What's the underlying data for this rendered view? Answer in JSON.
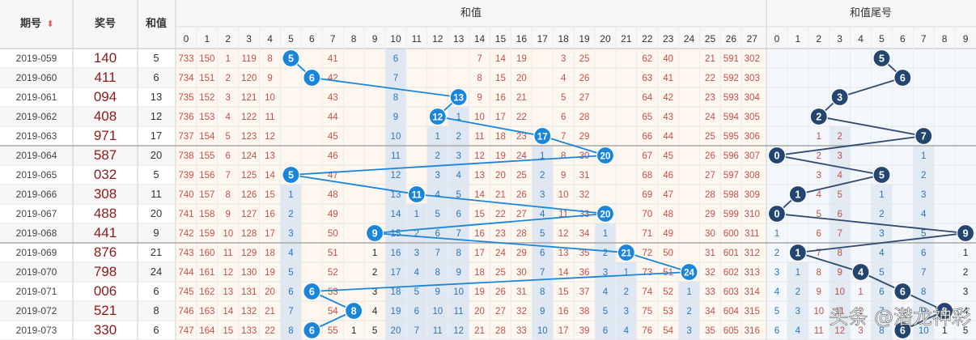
{
  "header": {
    "period": "期号",
    "prize": "奖号",
    "sum": "和值",
    "sum_group": "和值",
    "tail_group": "和值尾号"
  },
  "watermark": "头条 @潜龙神彩",
  "colors": {
    "sum_ball": "#1a86d9",
    "tail_ball": "#23456e",
    "prize_text": "#8b1a1a",
    "miss_red": "#c0504d",
    "miss_blue": "#2e74b5",
    "miss_black": "#222222",
    "sum_line": "#1a86d9",
    "tail_line": "#2d4a6e"
  },
  "chart_data": {
    "type": "table",
    "sum_columns": [
      "0",
      "1",
      "2",
      "3",
      "4",
      "5",
      "6",
      "7",
      "8",
      "9",
      "10",
      "11",
      "12",
      "13",
      "14",
      "15",
      "16",
      "17",
      "18",
      "19",
      "20",
      "21",
      "22",
      "23",
      "24",
      "25",
      "26",
      "27"
    ],
    "tail_columns": [
      "0",
      "1",
      "2",
      "3",
      "4",
      "5",
      "6",
      "7",
      "8",
      "9"
    ],
    "rows": [
      {
        "period": "2019-059",
        "prize": "140",
        "sum": "5",
        "sum_cells": [
          "733",
          "150",
          "1",
          "119",
          "8",
          "",
          "",
          "41",
          "",
          "",
          "6",
          "",
          "",
          "",
          "7",
          "14",
          "19",
          "",
          "3",
          "25",
          "",
          "",
          "62",
          "40",
          "",
          "21",
          "591",
          "302"
        ],
        "tail_cells": [
          "",
          "",
          "",
          "",
          "",
          "",
          "",
          "",
          "",
          ""
        ]
      },
      {
        "period": "2019-060",
        "prize": "411",
        "sum": "6",
        "sum_cells": [
          "734",
          "151",
          "2",
          "120",
          "9",
          "",
          "",
          "42",
          "",
          "",
          "7",
          "",
          "",
          "",
          "8",
          "15",
          "20",
          "",
          "4",
          "26",
          "",
          "",
          "63",
          "41",
          "",
          "22",
          "592",
          "303"
        ],
        "tail_cells": [
          "",
          "",
          "",
          "",
          "",
          "",
          "",
          "",
          "",
          ""
        ]
      },
      {
        "period": "2019-061",
        "prize": "094",
        "sum": "13",
        "sum_cells": [
          "735",
          "152",
          "3",
          "121",
          "10",
          "",
          "",
          "43",
          "",
          "",
          "8",
          "",
          "",
          "",
          "9",
          "16",
          "21",
          "",
          "5",
          "27",
          "",
          "",
          "64",
          "42",
          "",
          "23",
          "593",
          "304"
        ],
        "tail_cells": [
          "",
          "",
          "",
          "",
          "",
          "",
          "",
          "",
          "",
          ""
        ]
      },
      {
        "period": "2019-062",
        "prize": "408",
        "sum": "12",
        "sum_cells": [
          "736",
          "153",
          "4",
          "122",
          "11",
          "",
          "",
          "44",
          "",
          "",
          "9",
          "",
          "",
          "1",
          "10",
          "17",
          "22",
          "",
          "6",
          "28",
          "",
          "",
          "65",
          "43",
          "",
          "24",
          "594",
          "305"
        ],
        "tail_cells": [
          "",
          "",
          "",
          "",
          "",
          "",
          "",
          "",
          "",
          ""
        ]
      },
      {
        "period": "2019-063",
        "prize": "971",
        "sum": "17",
        "sum_cells": [
          "737",
          "154",
          "5",
          "123",
          "12",
          "",
          "",
          "45",
          "",
          "",
          "10",
          "",
          "1",
          "2",
          "11",
          "18",
          "23",
          "",
          "7",
          "29",
          "",
          "",
          "66",
          "44",
          "",
          "25",
          "595",
          "306"
        ],
        "tail_cells": [
          "",
          "",
          "1",
          "2",
          "",
          "",
          "",
          "",
          "",
          ""
        ]
      },
      {
        "period": "2019-064",
        "prize": "587",
        "sum": "20",
        "sum_cells": [
          "738",
          "155",
          "6",
          "124",
          "13",
          "",
          "",
          "46",
          "",
          "",
          "11",
          "",
          "2",
          "3",
          "12",
          "19",
          "24",
          "1",
          "8",
          "30",
          "",
          "",
          "67",
          "45",
          "",
          "26",
          "596",
          "307"
        ],
        "tail_cells": [
          "",
          "",
          "2",
          "3",
          "",
          "",
          "",
          "1",
          "",
          ""
        ]
      },
      {
        "period": "2019-065",
        "prize": "032",
        "sum": "5",
        "sum_cells": [
          "739",
          "156",
          "7",
          "125",
          "14",
          "",
          "",
          "47",
          "",
          "",
          "12",
          "",
          "3",
          "4",
          "13",
          "20",
          "25",
          "2",
          "9",
          "31",
          "",
          "",
          "68",
          "46",
          "",
          "27",
          "597",
          "308"
        ],
        "tail_cells": [
          "",
          "",
          "3",
          "4",
          "",
          "",
          "",
          "2",
          "",
          ""
        ]
      },
      {
        "period": "2019-066",
        "prize": "308",
        "sum": "11",
        "sum_cells": [
          "740",
          "157",
          "8",
          "126",
          "15",
          "1",
          "",
          "48",
          "",
          "",
          "13",
          "",
          "4",
          "5",
          "14",
          "21",
          "26",
          "3",
          "10",
          "32",
          "",
          "",
          "69",
          "47",
          "",
          "28",
          "598",
          "309"
        ],
        "tail_cells": [
          "",
          "",
          "4",
          "5",
          "",
          "1",
          "",
          "3",
          "",
          ""
        ]
      },
      {
        "period": "2019-067",
        "prize": "488",
        "sum": "20",
        "sum_cells": [
          "741",
          "158",
          "9",
          "127",
          "16",
          "2",
          "",
          "49",
          "",
          "",
          "14",
          "1",
          "5",
          "6",
          "15",
          "22",
          "27",
          "4",
          "11",
          "33",
          "",
          "",
          "70",
          "48",
          "",
          "29",
          "599",
          "310"
        ],
        "tail_cells": [
          "",
          "",
          "5",
          "6",
          "",
          "2",
          "",
          "4",
          "",
          ""
        ]
      },
      {
        "period": "2019-068",
        "prize": "441",
        "sum": "9",
        "sum_cells": [
          "742",
          "159",
          "10",
          "128",
          "17",
          "3",
          "",
          "50",
          "",
          "",
          "15",
          "2",
          "6",
          "7",
          "16",
          "23",
          "28",
          "5",
          "12",
          "34",
          "1",
          "",
          "71",
          "49",
          "",
          "30",
          "600",
          "311"
        ],
        "tail_cells": [
          "1",
          "",
          "6",
          "7",
          "",
          "3",
          "",
          "5",
          "",
          ""
        ]
      },
      {
        "period": "2019-069",
        "prize": "876",
        "sum": "21",
        "sum_cells": [
          "743",
          "160",
          "11",
          "129",
          "18",
          "4",
          "",
          "51",
          "",
          "1",
          "16",
          "3",
          "7",
          "8",
          "17",
          "24",
          "29",
          "6",
          "13",
          "35",
          "2",
          "",
          "72",
          "50",
          "",
          "31",
          "601",
          "312"
        ],
        "tail_cells": [
          "2",
          "",
          "7",
          "8",
          "",
          "4",
          "",
          "6",
          "",
          "1"
        ]
      },
      {
        "period": "2019-070",
        "prize": "798",
        "sum": "24",
        "sum_cells": [
          "744",
          "161",
          "12",
          "130",
          "19",
          "5",
          "",
          "52",
          "",
          "2",
          "17",
          "4",
          "8",
          "9",
          "18",
          "25",
          "30",
          "7",
          "14",
          "36",
          "3",
          "1",
          "73",
          "51",
          "",
          "32",
          "602",
          "313"
        ],
        "tail_cells": [
          "3",
          "1",
          "8",
          "9",
          "",
          "5",
          "",
          "7",
          "",
          "2"
        ]
      },
      {
        "period": "2019-071",
        "prize": "006",
        "sum": "6",
        "sum_cells": [
          "745",
          "162",
          "13",
          "131",
          "20",
          "6",
          "",
          "53",
          "",
          "3",
          "18",
          "5",
          "9",
          "10",
          "19",
          "26",
          "31",
          "8",
          "15",
          "37",
          "4",
          "2",
          "74",
          "52",
          "1",
          "33",
          "603",
          "314"
        ],
        "tail_cells": [
          "4",
          "2",
          "9",
          "10",
          "1",
          "6",
          "",
          "8",
          "",
          "3"
        ]
      },
      {
        "period": "2019-072",
        "prize": "521",
        "sum": "8",
        "sum_cells": [
          "746",
          "163",
          "14",
          "132",
          "21",
          "7",
          "",
          "54",
          "",
          "4",
          "19",
          "6",
          "10",
          "11",
          "20",
          "27",
          "32",
          "9",
          "16",
          "38",
          "5",
          "3",
          "75",
          "53",
          "2",
          "34",
          "604",
          "315"
        ],
        "tail_cells": [
          "5",
          "3",
          "10",
          "11",
          "2",
          "7",
          "1",
          "9",
          "",
          "4"
        ]
      },
      {
        "period": "2019-073",
        "prize": "330",
        "sum": "6",
        "sum_cells": [
          "747",
          "164",
          "15",
          "133",
          "22",
          "8",
          "",
          "55",
          "1",
          "5",
          "20",
          "7",
          "11",
          "12",
          "21",
          "28",
          "33",
          "10",
          "17",
          "39",
          "6",
          "4",
          "76",
          "54",
          "3",
          "35",
          "605",
          "316"
        ],
        "tail_cells": [
          "6",
          "4",
          "11",
          "12",
          "3",
          "8",
          "",
          "10",
          "1",
          "5"
        ]
      }
    ]
  }
}
